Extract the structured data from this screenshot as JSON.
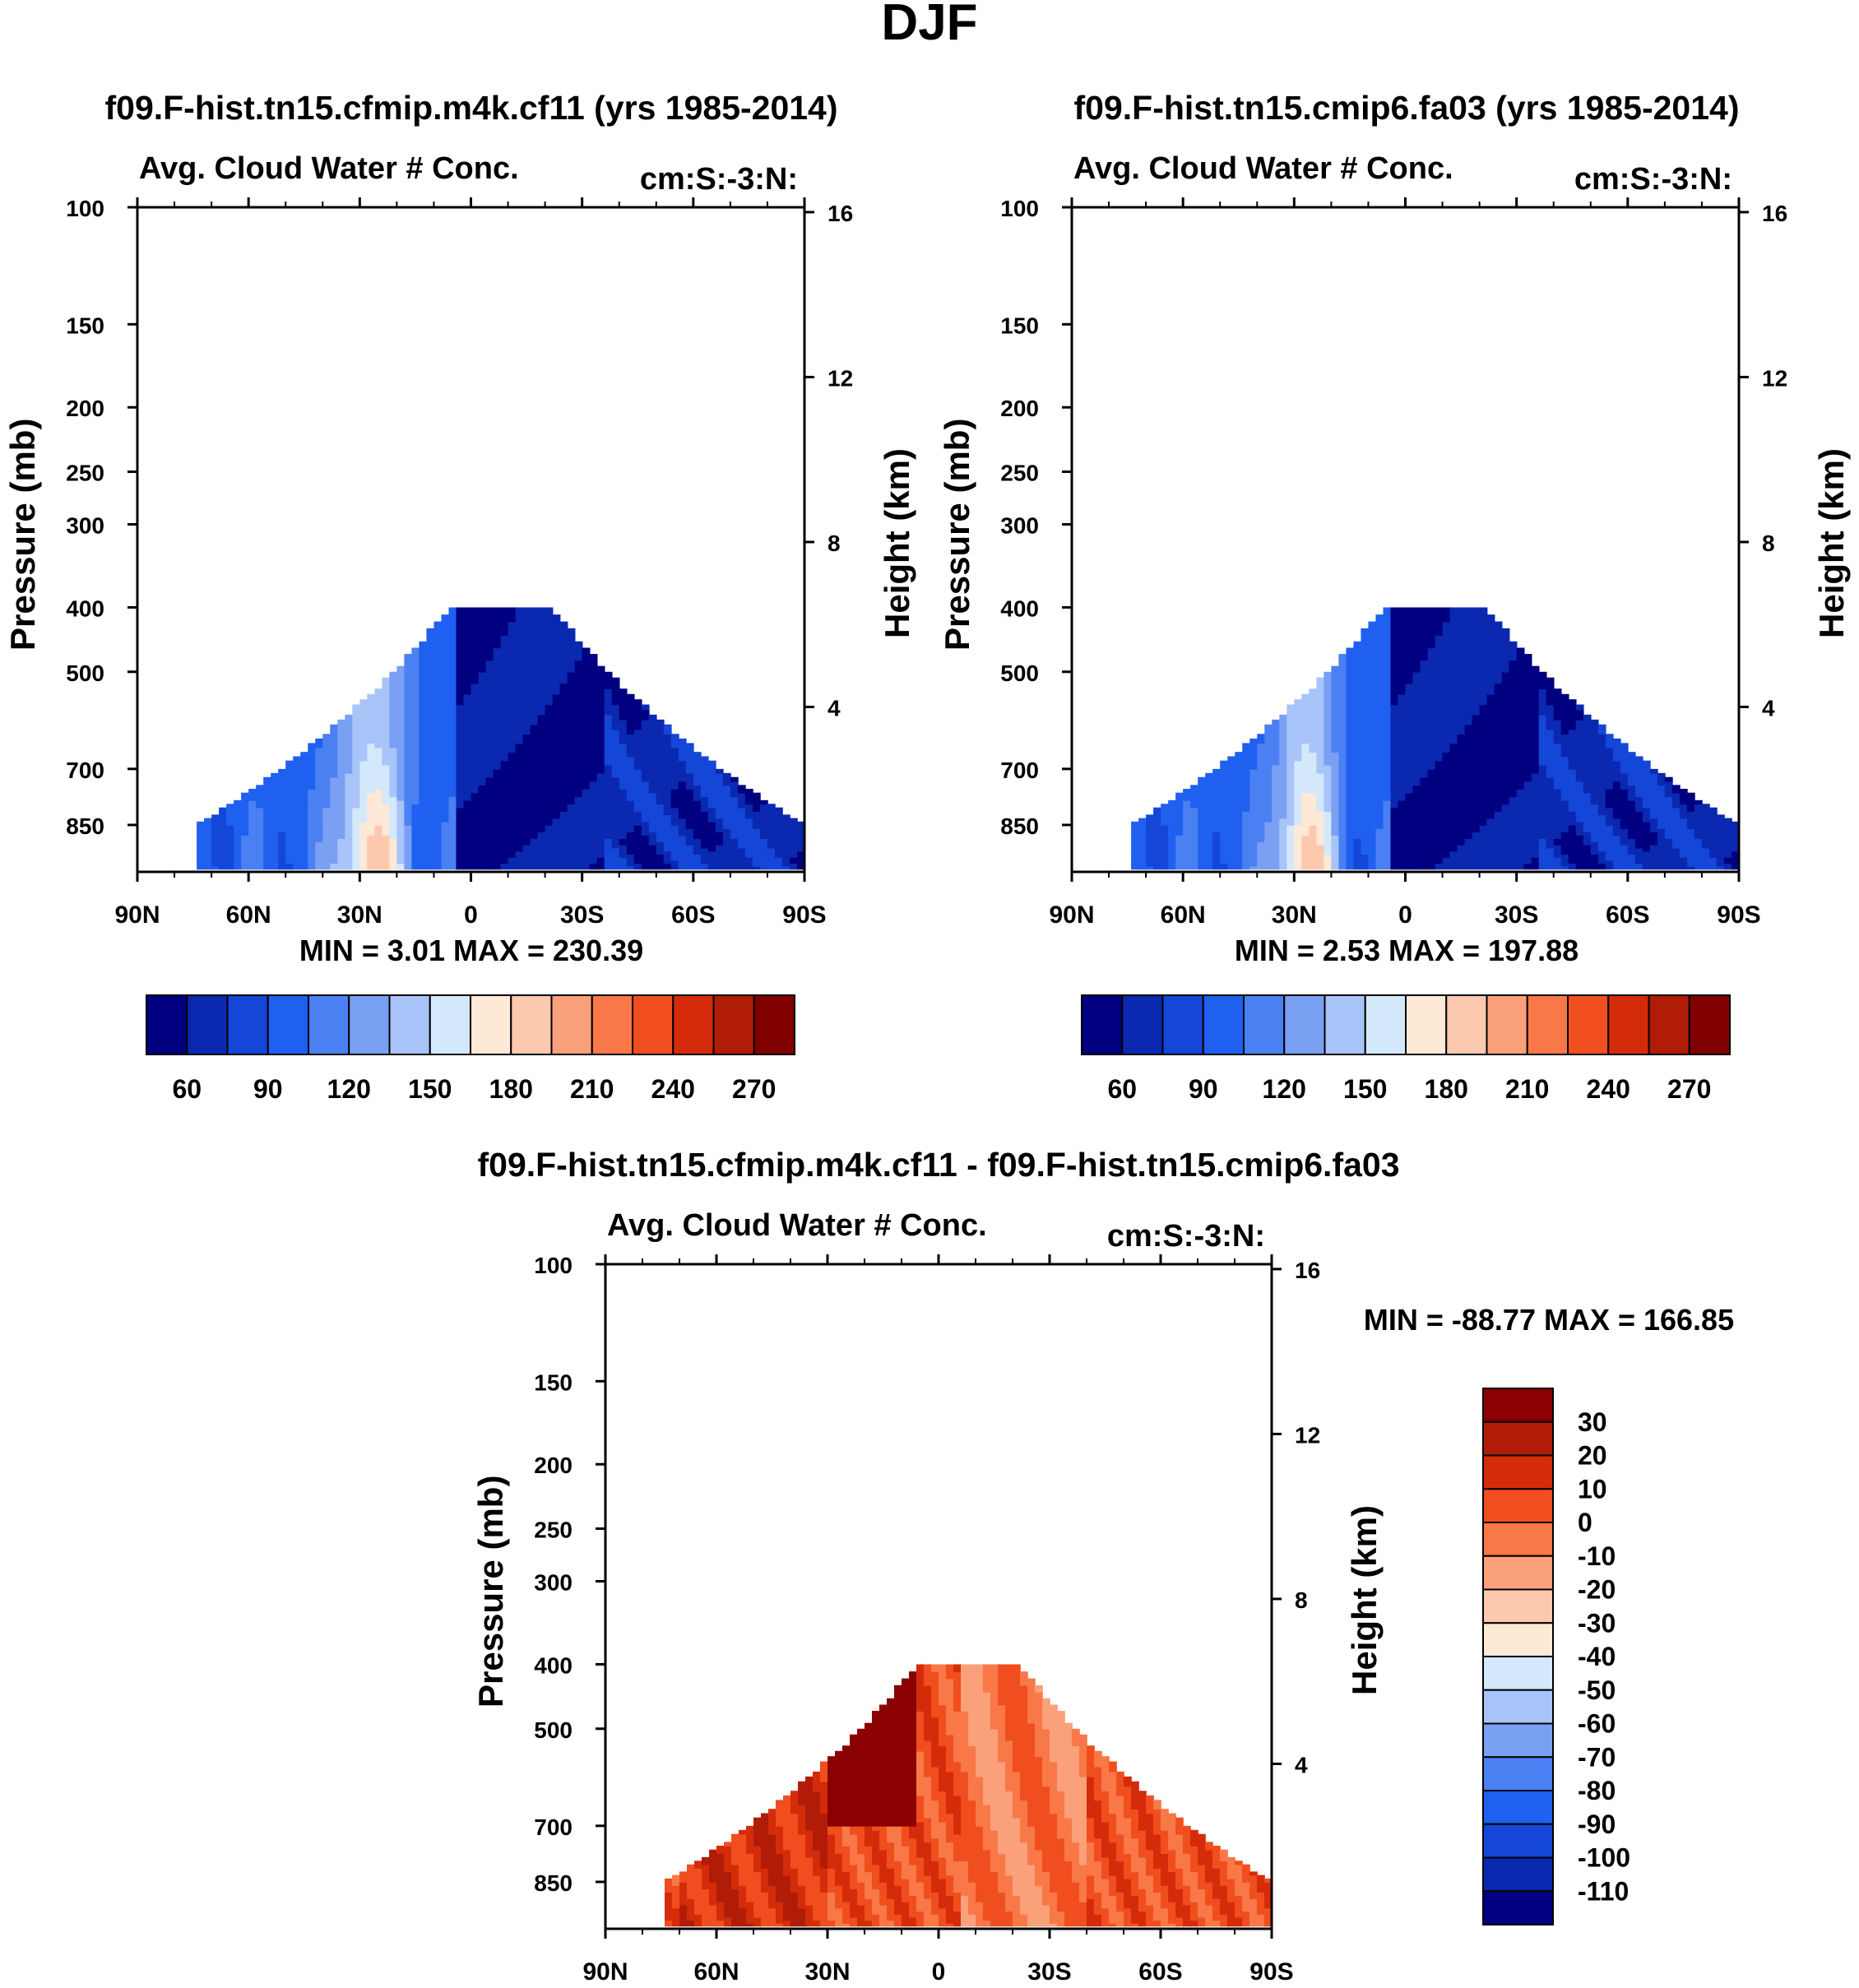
{
  "figure_title": "DJF",
  "colors": {
    "seq": [
      "#000080",
      "#0a28b0",
      "#1446d8",
      "#2060f0",
      "#4a80f2",
      "#7aa0f4",
      "#a8c4f8",
      "#d4e8fc",
      "#fde9d5",
      "#fcc8ae",
      "#faa07a",
      "#f87848",
      "#f04e1e",
      "#d42c0a",
      "#b01c08",
      "#800000"
    ]
  },
  "chart_data": [
    {
      "type": "heatmap",
      "panel_title": "f09.F-hist.tn15.cfmip.m4k.cf11 (yrs 1985-2014)",
      "left_string": "Avg. Cloud Water # Conc.",
      "right_string": "cm:S:-3:N:",
      "ylabel": "Pressure (mb)",
      "ylabel_right": "Height (km)",
      "x_ticks": [
        "90N",
        "60N",
        "30N",
        "0",
        "30S",
        "60S",
        "90S"
      ],
      "y_ticks": [
        "100",
        "150",
        "200",
        "250",
        "300",
        "400",
        "500",
        "700",
        "850"
      ],
      "y_ticks_right": [
        "16",
        "12",
        "8",
        "4"
      ],
      "xlim": [
        90,
        -90
      ],
      "ylim_mb": [
        1000,
        100
      ],
      "min_max": "MIN =   3.01  MAX = 230.39",
      "min": 3.01,
      "max": 230.39,
      "colorbar_labels": [
        "60",
        "90",
        "120",
        "150",
        "180",
        "210",
        "240",
        "270"
      ],
      "colorbar_levels": [
        45,
        60,
        75,
        90,
        105,
        120,
        135,
        150,
        165,
        180,
        195,
        210,
        225,
        240,
        255,
        270
      ],
      "field": "positive"
    },
    {
      "type": "heatmap",
      "panel_title": "f09.F-hist.tn15.cmip6.fa03 (yrs 1985-2014)",
      "left_string": "Avg. Cloud Water # Conc.",
      "right_string": "cm:S:-3:N:",
      "ylabel": "Pressure (mb)",
      "ylabel_right": "Height (km)",
      "x_ticks": [
        "90N",
        "60N",
        "30N",
        "0",
        "30S",
        "60S",
        "90S"
      ],
      "y_ticks": [
        "100",
        "150",
        "200",
        "250",
        "300",
        "400",
        "500",
        "700",
        "850"
      ],
      "y_ticks_right": [
        "16",
        "12",
        "8",
        "4"
      ],
      "xlim": [
        90,
        -90
      ],
      "ylim_mb": [
        1000,
        100
      ],
      "min_max": "MIN =   2.53  MAX = 197.88",
      "min": 2.53,
      "max": 197.88,
      "colorbar_labels": [
        "60",
        "90",
        "120",
        "150",
        "180",
        "210",
        "240",
        "270"
      ],
      "colorbar_levels": [
        45,
        60,
        75,
        90,
        105,
        120,
        135,
        150,
        165,
        180,
        195,
        210,
        225,
        240,
        255,
        270
      ],
      "field": "positive"
    },
    {
      "type": "heatmap",
      "panel_title": "f09.F-hist.tn15.cfmip.m4k.cf11 - f09.F-hist.tn15.cmip6.fa03",
      "left_string": "Avg. Cloud Water # Conc.",
      "right_string": "cm:S:-3:N:",
      "ylabel": "Pressure (mb)",
      "ylabel_right": "Height (km)",
      "x_ticks": [
        "90N",
        "60N",
        "30N",
        "0",
        "30S",
        "60S",
        "90S"
      ],
      "y_ticks": [
        "100",
        "150",
        "200",
        "250",
        "300",
        "400",
        "500",
        "700",
        "850"
      ],
      "y_ticks_right": [
        "16",
        "12",
        "8",
        "4"
      ],
      "xlim": [
        90,
        -90
      ],
      "ylim_mb": [
        1000,
        100
      ],
      "min_max": "MIN = -88.77  MAX = 166.85",
      "min": -88.77,
      "max": 166.85,
      "colorbar_labels": [
        "30",
        "20",
        "10",
        "0",
        "-10",
        "-20",
        "-30",
        "-40",
        "-50",
        "-60",
        "-70",
        "-80",
        "-90",
        "-100",
        "-110"
      ],
      "colorbar_levels": [
        30,
        20,
        10,
        0,
        -10,
        -20,
        -30,
        -40,
        -50,
        -60,
        -70,
        -80,
        -90,
        -100,
        -110
      ],
      "field": "difference"
    }
  ]
}
